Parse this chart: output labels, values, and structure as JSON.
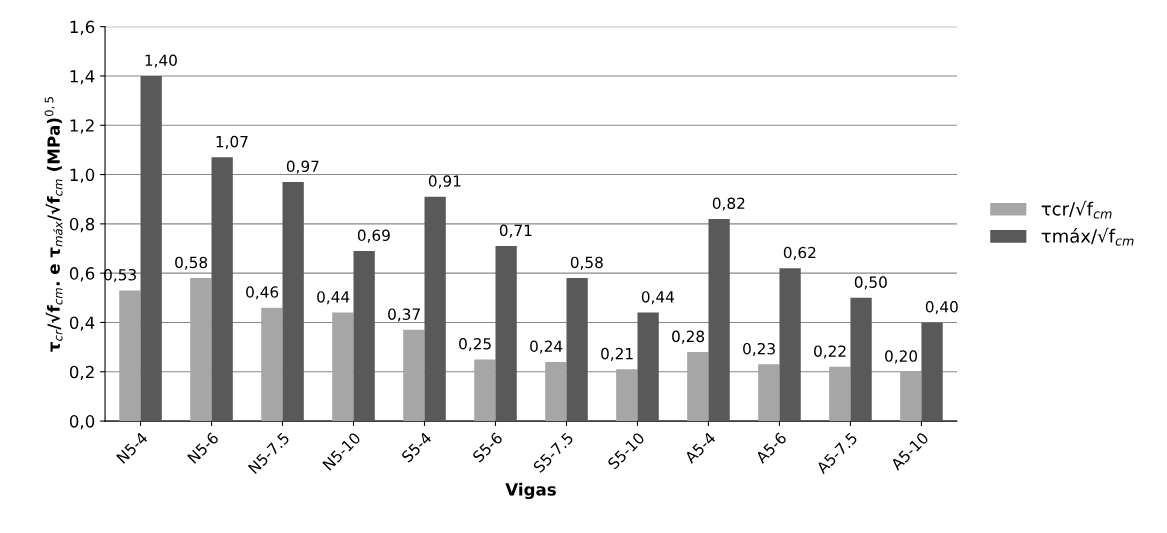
{
  "chart_data": {
    "type": "bar",
    "xlabel": "Vigas",
    "ylabel": "τ$_{cr}$/√f$_{cm}$. e τ$_{máx}$/√f$_{cm}$ (MPa)$^{0,5}$",
    "categories": [
      "N5-4",
      "N5-6",
      "N5-7.5",
      "N5-10",
      "S5-4",
      "S5-6",
      "S5-7.5",
      "S5-10",
      "A5-4",
      "A5-6",
      "A5-7.5",
      "A5-10"
    ],
    "series": [
      {
        "name": "τcr/√f$_{cm}$",
        "color": "#a6a6a6",
        "values": [
          0.53,
          0.58,
          0.46,
          0.44,
          0.37,
          0.25,
          0.24,
          0.21,
          0.28,
          0.23,
          0.22,
          0.2
        ],
        "value_labels": [
          "0,53",
          "0,58",
          "0,46",
          "0,44",
          "0,37",
          "0,25",
          "0,24",
          "0,21",
          "0,28",
          "0,23",
          "0,22",
          "0,20"
        ]
      },
      {
        "name": "τmáx/√f$_{cm}$",
        "color": "#595959",
        "values": [
          1.4,
          1.07,
          0.97,
          0.69,
          0.91,
          0.71,
          0.58,
          0.44,
          0.82,
          0.62,
          0.5,
          0.4
        ],
        "value_labels": [
          "1,40",
          "1,07",
          "0,97",
          "0,69",
          "0,91",
          "0,71",
          "0,58",
          "0,44",
          "0,82",
          "0,62",
          "0,50",
          "0,40"
        ]
      }
    ],
    "ylim": [
      0,
      1.6
    ],
    "yticks": [
      {
        "value": 0,
        "label": "0,0"
      },
      {
        "value": 0.2,
        "label": "0,2"
      },
      {
        "value": 0.4,
        "label": "0,4"
      },
      {
        "value": 0.6,
        "label": "0,6"
      },
      {
        "value": 0.8,
        "label": "0,8"
      },
      {
        "value": 1.0,
        "label": "1,0"
      },
      {
        "value": 1.2,
        "label": "1,2"
      },
      {
        "value": 1.4,
        "label": "1,4"
      },
      {
        "value": 1.6,
        "label": "1,6"
      }
    ],
    "grid": "y",
    "legend": "right"
  }
}
